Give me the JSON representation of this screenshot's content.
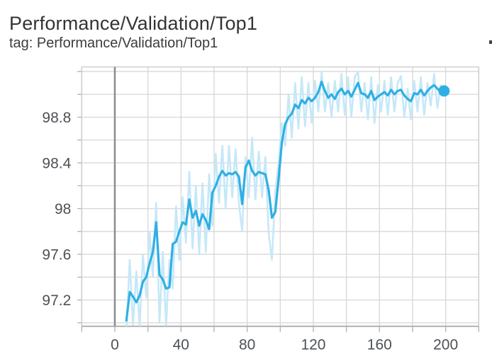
{
  "header": {
    "title": "Performance/Validation/Top1",
    "tag": "tag: Performance/Validation/Top1"
  },
  "colors": {
    "smoothed_line": "#2fafe3",
    "raw_line": "#c6e8f8",
    "gridline": "#d7d7d7",
    "plot_border": "#c9c9c9",
    "axis_line": "#b0b0b0",
    "zero_line": "#8c8c8c",
    "tick_text": "#4d5156",
    "title_text": "#343434",
    "clipped_fragment": "#37474f"
  },
  "chart_data": {
    "type": "line",
    "title": "Performance/Validation/Top1",
    "xlabel": "",
    "ylabel": "",
    "legend_position": "none",
    "grid": true,
    "x_axis": {
      "min": -20,
      "max": 220,
      "gridline_step": 20,
      "tick_values": [
        0,
        40,
        80,
        120,
        160,
        200
      ],
      "tick_labels": [
        "0",
        "40",
        "80",
        "120",
        "160",
        "200"
      ]
    },
    "y_axis": {
      "min": 96.97,
      "max": 99.24,
      "gridline_values": [
        97.0,
        97.2,
        97.4,
        97.6,
        97.8,
        98.0,
        98.2,
        98.4,
        98.6,
        98.8,
        99.0,
        99.2
      ],
      "tick_values": [
        97.2,
        97.6,
        98,
        98.4,
        98.8
      ],
      "tick_labels": [
        "97.2",
        "97.6",
        "98",
        "98.4",
        "98.8"
      ]
    },
    "zero_line_x": 0,
    "x": [
      7,
      9,
      11,
      13,
      15,
      17,
      19,
      21,
      23,
      25,
      27,
      29,
      31,
      33,
      35,
      37,
      39,
      41,
      43,
      45,
      47,
      49,
      51,
      53,
      55,
      57,
      59,
      61,
      63,
      65,
      67,
      69,
      71,
      73,
      75,
      77,
      79,
      81,
      83,
      85,
      87,
      89,
      91,
      93,
      95,
      97,
      99,
      101,
      103,
      105,
      107,
      109,
      111,
      113,
      115,
      117,
      119,
      121,
      123,
      125,
      127,
      129,
      131,
      133,
      135,
      137,
      139,
      141,
      143,
      145,
      147,
      149,
      151,
      153,
      155,
      157,
      159,
      161,
      163,
      165,
      167,
      169,
      171,
      173,
      175,
      177,
      179,
      181,
      183,
      185,
      187,
      189,
      191,
      193,
      195,
      197,
      199
    ],
    "series": [
      {
        "name": "raw",
        "color": "#c6e8f8",
        "values": [
          96.95,
          97.55,
          96.98,
          97.45,
          96.96,
          97.6,
          97.22,
          97.8,
          97.4,
          98.05,
          97.0,
          97.62,
          96.98,
          97.55,
          97.3,
          98.02,
          97.55,
          98.1,
          97.7,
          98.32,
          97.65,
          98.2,
          97.6,
          98.22,
          97.62,
          98.3,
          97.85,
          98.48,
          98.05,
          98.55,
          98.0,
          98.55,
          98.1,
          98.52,
          98.05,
          97.8,
          98.45,
          98.1,
          98.62,
          98.08,
          98.5,
          98.1,
          98.45,
          97.78,
          97.55,
          98.15,
          98.4,
          98.75,
          98.55,
          99.0,
          98.62,
          99.1,
          98.7,
          99.15,
          98.72,
          99.1,
          98.75,
          99.12,
          98.85,
          99.2,
          98.85,
          99.1,
          98.8,
          99.12,
          98.85,
          99.18,
          98.82,
          99.15,
          98.8,
          99.15,
          99.2,
          98.85,
          99.1,
          98.78,
          99.15,
          98.75,
          99.08,
          98.85,
          99.12,
          98.82,
          99.15,
          98.85,
          99.1,
          99.16,
          98.8,
          99.05,
          98.78,
          99.12,
          98.85,
          99.15,
          98.82,
          99.1,
          98.9,
          99.18,
          98.88,
          99.08,
          99.03
        ]
      },
      {
        "name": "smoothed",
        "color": "#2fafe3",
        "values": [
          97.02,
          97.27,
          97.23,
          97.18,
          97.24,
          97.36,
          97.4,
          97.52,
          97.62,
          97.88,
          97.42,
          97.38,
          97.3,
          97.31,
          97.69,
          97.71,
          97.8,
          97.88,
          97.86,
          98.08,
          97.92,
          97.98,
          97.85,
          97.95,
          97.9,
          97.82,
          98.14,
          98.2,
          98.28,
          98.33,
          98.29,
          98.31,
          98.3,
          98.32,
          98.28,
          98.04,
          98.36,
          98.42,
          98.33,
          98.29,
          98.32,
          98.31,
          98.3,
          98.16,
          97.92,
          97.97,
          98.26,
          98.58,
          98.74,
          98.8,
          98.83,
          98.91,
          98.88,
          98.95,
          98.92,
          98.97,
          98.94,
          98.97,
          99.02,
          99.11,
          99.03,
          98.97,
          99.0,
          98.96,
          99.02,
          99.05,
          99.0,
          99.03,
          98.98,
          99.04,
          99.1,
          99.01,
          99.0,
          98.97,
          99.03,
          98.95,
          98.98,
          99.0,
          99.02,
          98.99,
          99.04,
          99.0,
          99.03,
          99.04,
          98.99,
          98.96,
          98.94,
          99.01,
          99.0,
          99.04,
          98.99,
          99.03,
          99.06,
          99.08,
          99.05,
          99.02,
          99.03
        ]
      }
    ],
    "end_marker": {
      "x": 199,
      "value": 99.03,
      "radius": 8
    }
  }
}
